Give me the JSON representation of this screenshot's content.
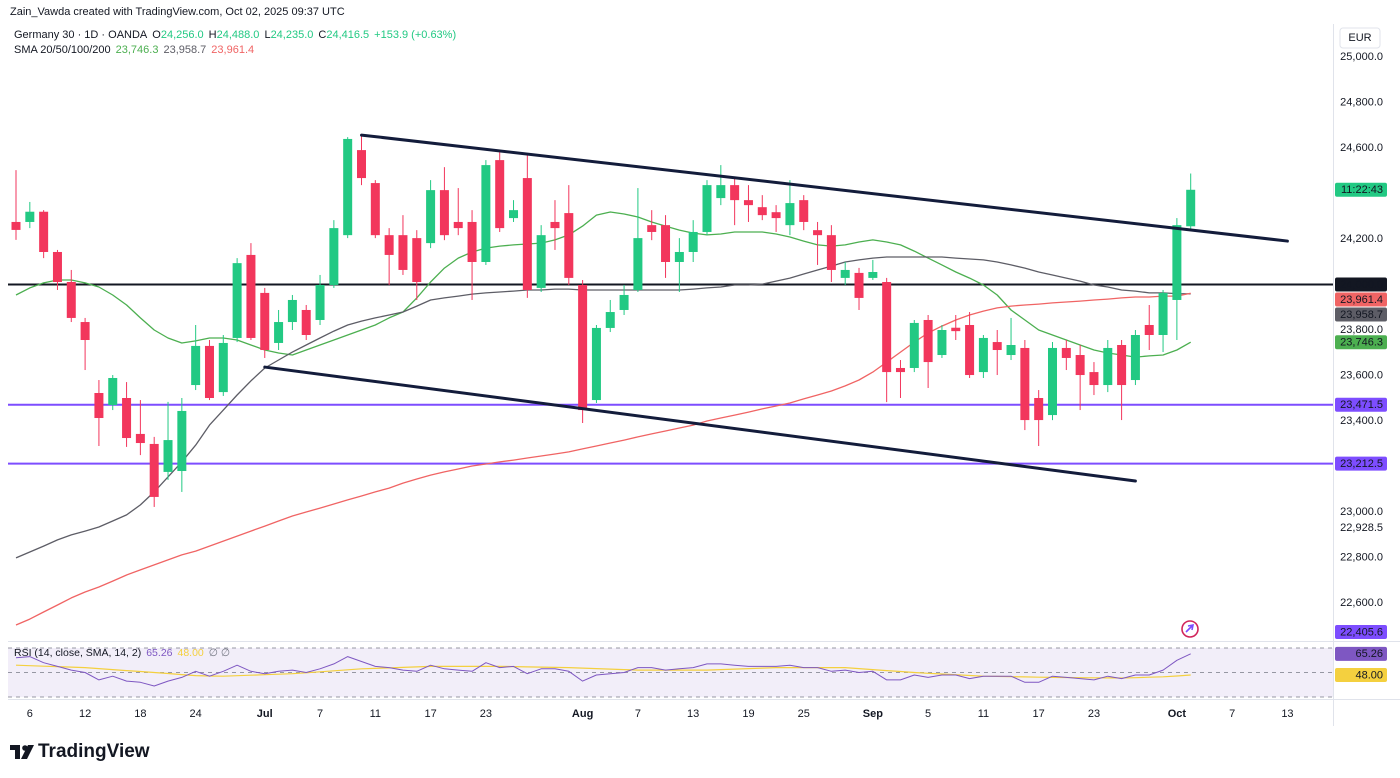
{
  "chart_data": {
    "type": "candlestick",
    "author_line": "Zain_Vawda created with TradingView.com, Oct 02, 2025 09:37 UTC",
    "symbol": "Germany 30 · 1D · OANDA",
    "ohlc_legend": [
      {
        "key": "O",
        "value": "24,256.0"
      },
      {
        "key": "H",
        "value": "24,488.0"
      },
      {
        "key": "L",
        "value": "24,235.0"
      },
      {
        "key": "C",
        "value": "24,416.5"
      }
    ],
    "change": "+153.9 (+0.63%)",
    "sma_title": "SMA 20/50/100/200",
    "currency": "EUR",
    "countdown": "11:22:43",
    "up_color": "#22c983",
    "down_color": "#f2365c",
    "grid": false,
    "categories": [
      null,
      "6",
      null,
      null,
      null,
      "12",
      null,
      null,
      null,
      "18",
      null,
      null,
      null,
      "24",
      null,
      null,
      null,
      null,
      "Jul",
      null,
      null,
      null,
      "7",
      null,
      null,
      null,
      "11",
      null,
      null,
      null,
      "17",
      null,
      null,
      null,
      "23",
      null,
      null,
      null,
      null,
      null,
      null,
      "Aug",
      null,
      null,
      null,
      "7",
      null,
      null,
      null,
      "13",
      null,
      null,
      null,
      "19",
      null,
      null,
      null,
      "25",
      null,
      null,
      null,
      null,
      "Sep",
      null,
      null,
      null,
      "5",
      null,
      null,
      null,
      "11",
      null,
      null,
      null,
      "17",
      null,
      null,
      null,
      "23",
      null,
      null,
      null,
      null,
      null,
      "Oct",
      null,
      null,
      null,
      "7",
      null,
      null,
      null,
      "13",
      null,
      null,
      null
    ],
    "open": [
      24275,
      24275,
      24320,
      24143,
      24011,
      23835,
      23523,
      23470,
      23501,
      23343,
      23299,
      23176,
      23180,
      23558,
      23730,
      23527,
      23765,
      24130,
      23963,
      23743,
      23835,
      23888,
      23844,
      23998,
      24217,
      24591,
      24446,
      24217,
      24217,
      24204,
      24182,
      24415,
      24275,
      24275,
      24099,
      24547,
      24292,
      24468,
      23985,
      24275,
      24314,
      23998,
      23492,
      23809,
      23888,
      23976,
      24261,
      24261,
      24099,
      24143,
      24231,
      24380,
      24437,
      24371,
      24340,
      24318,
      24261,
      24371,
      24239,
      24217,
      24029,
      24051,
      24029,
      24011,
      23633,
      23633,
      23844,
      23690,
      23810,
      23822,
      23615,
      23747,
      23690,
      23721,
      23501,
      23426,
      23721,
      23690,
      23615,
      23558,
      23734,
      23580,
      23822,
      23778,
      23932,
      24256,
      null,
      null,
      null,
      null,
      null,
      null,
      null,
      null,
      null,
      null
    ],
    "high": [
      24503,
      24363,
      24327,
      24152,
      24064,
      23853,
      23580,
      23602,
      23571,
      23492,
      23330,
      23484,
      23501,
      23822,
      23756,
      23778,
      24116,
      24182,
      23985,
      23888,
      23954,
      23910,
      24042,
      24283,
      24648,
      24657,
      24459,
      24248,
      24305,
      24239,
      24459,
      24516,
      24424,
      24327,
      24547,
      24582,
      24371,
      24569,
      24261,
      24371,
      24437,
      24020,
      23822,
      23932,
      23998,
      24424,
      24327,
      24305,
      24204,
      24283,
      24459,
      24525,
      24468,
      24437,
      24393,
      24349,
      24459,
      24393,
      24275,
      24261,
      24099,
      24073,
      24108,
      24029,
      23668,
      23844,
      23866,
      23822,
      23866,
      23879,
      23778,
      23800,
      23853,
      23756,
      23536,
      23747,
      23756,
      23734,
      23659,
      23756,
      23756,
      23800,
      23910,
      23976,
      24292,
      24488,
      null,
      null,
      null,
      null,
      null,
      null,
      null,
      null,
      null,
      null
    ],
    "low": [
      24196,
      24248,
      24116,
      23976,
      23835,
      23624,
      23290,
      23448,
      23286,
      23250,
      23022,
      23141,
      23088,
      23536,
      23492,
      23510,
      23747,
      23756,
      23677,
      23712,
      23800,
      23756,
      23822,
      23985,
      24204,
      24437,
      24204,
      23998,
      24042,
      23932,
      24160,
      24195,
      24217,
      23932,
      24086,
      24231,
      24275,
      23941,
      23967,
      24152,
      23998,
      23391,
      23479,
      23791,
      23866,
      23967,
      24195,
      24029,
      23967,
      24099,
      24217,
      24349,
      24261,
      24275,
      24283,
      24231,
      24217,
      24239,
      24086,
      24011,
      23998,
      23888,
      24020,
      23483,
      23501,
      23615,
      23545,
      23677,
      23756,
      23589,
      23589,
      23602,
      23668,
      23360,
      23290,
      23404,
      23624,
      23448,
      23514,
      23527,
      23404,
      23558,
      23712,
      23703,
      23756,
      24235,
      null,
      null,
      null,
      null,
      null,
      null,
      null,
      null,
      null,
      null
    ],
    "close": [
      24240,
      24320,
      24143,
      24011,
      23853,
      23756,
      23413,
      23589,
      23325,
      23303,
      23066,
      23316,
      23444,
      23730,
      23501,
      23743,
      24094,
      23765,
      23712,
      23835,
      23932,
      23778,
      23998,
      24248,
      24640,
      24468,
      24217,
      24130,
      24064,
      24011,
      24415,
      24217,
      24248,
      24099,
      24525,
      24248,
      24327,
      23976,
      24217,
      24248,
      24029,
      23448,
      23809,
      23879,
      23954,
      24204,
      24231,
      24099,
      24143,
      24231,
      24437,
      24437,
      24371,
      24349,
      24305,
      24292,
      24358,
      24275,
      24217,
      24064,
      24064,
      23941,
      24055,
      23615,
      23615,
      23831,
      23659,
      23800,
      23795,
      23602,
      23765,
      23712,
      23734,
      23404,
      23404,
      23721,
      23677,
      23602,
      23558,
      23721,
      23558,
      23778,
      23778,
      23963,
      24261,
      24416.5,
      null,
      null,
      null,
      null,
      null,
      null,
      null,
      null,
      null,
      null
    ],
    "series": [
      {
        "name": "SMA 20",
        "color": "#4caf50",
        "last_label": "23,746.3",
        "values": [
          23954,
          23985,
          24007,
          24020,
          24020,
          24007,
          23989,
          23954,
          23910,
          23853,
          23800,
          23765,
          23743,
          23752,
          23765,
          23765,
          23756,
          23734,
          23712,
          23699,
          23690,
          23712,
          23734,
          23756,
          23778,
          23800,
          23822,
          23853,
          23879,
          23941,
          24011,
          24072,
          24116,
          24143,
          24160,
          24169,
          24174,
          24178,
          24182,
          24196,
          24218,
          24257,
          24305,
          24319,
          24310,
          24297,
          24275,
          24257,
          24239,
          24226,
          24218,
          24222,
          24231,
          24231,
          24231,
          24222,
          24209,
          24191,
          24174,
          24169,
          24174,
          24187,
          24196,
          24187,
          24174,
          24147,
          24116,
          24086,
          24055,
          24028,
          23998,
          23954,
          23888,
          23844,
          23800,
          23778,
          23756,
          23734,
          23712,
          23699,
          23690,
          23681,
          23686,
          23690,
          23712,
          23746.3,
          null,
          null,
          null,
          null,
          null,
          null,
          null,
          null,
          null,
          null
        ]
      },
      {
        "name": "SMA 50",
        "color": "#5d5d66",
        "last_label": "23,958.7",
        "values": [
          22798,
          22824,
          22850,
          22877,
          22899,
          22916,
          22934,
          22960,
          22987,
          23031,
          23088,
          23154,
          23220,
          23294,
          23382,
          23448,
          23514,
          23576,
          23633,
          23668,
          23703,
          23734,
          23765,
          23795,
          23822,
          23839,
          23853,
          23866,
          23879,
          23905,
          23932,
          23941,
          23949,
          23958,
          23963,
          23967,
          23971,
          23976,
          23976,
          23980,
          23980,
          23976,
          23976,
          23976,
          23976,
          23976,
          23976,
          23976,
          23976,
          23980,
          23985,
          23989,
          23998,
          23998,
          24002,
          24015,
          24028,
          24046,
          24064,
          24081,
          24099,
          24108,
          24116,
          24121,
          24121,
          24121,
          24121,
          24121,
          24116,
          24112,
          24108,
          24099,
          24086,
          24072,
          24055,
          24042,
          24028,
          24015,
          23998,
          23989,
          23976,
          23971,
          23963,
          23963,
          23960,
          23958.7,
          null,
          null,
          null,
          null,
          null,
          null,
          null,
          null,
          null,
          null
        ]
      },
      {
        "name": "SMA 100",
        "color": "#f06464",
        "last_label": "23,961.4",
        "values": [
          22503,
          22529,
          22560,
          22591,
          22622,
          22648,
          22670,
          22696,
          22723,
          22745,
          22767,
          22789,
          22811,
          22828,
          22850,
          22872,
          22894,
          22916,
          22938,
          22960,
          22982,
          23000,
          23017,
          23035,
          23053,
          23070,
          23088,
          23105,
          23127,
          23145,
          23162,
          23176,
          23189,
          23202,
          23211,
          23220,
          23228,
          23237,
          23246,
          23255,
          23264,
          23277,
          23290,
          23303,
          23316,
          23330,
          23343,
          23356,
          23369,
          23382,
          23400,
          23413,
          23426,
          23439,
          23453,
          23466,
          23479,
          23497,
          23514,
          23532,
          23554,
          23580,
          23615,
          23659,
          23703,
          23747,
          23787,
          23817,
          23844,
          23866,
          23883,
          23897,
          23905,
          23910,
          23914,
          23919,
          23923,
          23927,
          23932,
          23936,
          23941,
          23945,
          23945,
          23949,
          23949,
          23961.4,
          null,
          null,
          null,
          null,
          null,
          null,
          null,
          null,
          null,
          null
        ]
      }
    ],
    "levels": [
      {
        "value": 24000,
        "label": "24,000.0",
        "color": "#131722"
      },
      {
        "value": 23471.5,
        "label": "23,471.5",
        "color": "#7d4dff"
      },
      {
        "value": 23212.5,
        "label": "23,212.5",
        "color": "#7d4dff"
      },
      {
        "value": 22405.6,
        "label": "22,405.6",
        "color": "#7d4dff"
      }
    ],
    "axis_marks": [
      {
        "value": 22928.5,
        "label": "22,928.5"
      }
    ],
    "trendlines": [
      {
        "start": [
          25,
          24657
        ],
        "end": [
          92,
          24191
        ],
        "color": "#131c3b"
      },
      {
        "start": [
          18,
          23637
        ],
        "end": [
          81,
          23136
        ],
        "color": "#131c3b"
      }
    ],
    "ylim": [
      22437,
      25119
    ],
    "yticks": [
      {
        "value": 25000,
        "label": "25,000.0"
      },
      {
        "value": 24800,
        "label": "24,800.0"
      },
      {
        "value": 24600,
        "label": "24,600.0"
      },
      {
        "value": 24200,
        "label": "24,200.0"
      },
      {
        "value": 23800,
        "label": "23,800.0"
      },
      {
        "value": 23600,
        "label": "23,600.0"
      },
      {
        "value": 23400,
        "label": "23,400.0"
      },
      {
        "value": 23000,
        "label": "23,000.0"
      },
      {
        "value": 22800,
        "label": "22,800.0"
      },
      {
        "value": 22600,
        "label": "22,600.0"
      }
    ],
    "rsi": {
      "title": "RSI (14, close, SMA, 14, 2)",
      "value_label": "65.26",
      "ma_label": "48.00",
      "extra": "∅ ∅",
      "color": "#7e57c2",
      "ma_color": "#f4d03f",
      "band_color": "#7e57c2",
      "bands": [
        70,
        50,
        30
      ],
      "ylim": [
        29.2,
        74.1
      ],
      "values": [
        62,
        63,
        58,
        55,
        52,
        50,
        44,
        47,
        43,
        42,
        39,
        43,
        46,
        51,
        47,
        51,
        56,
        51,
        49,
        51,
        52,
        50,
        53,
        57,
        63,
        59,
        55,
        54,
        52,
        51,
        56,
        53,
        52,
        51,
        58,
        54,
        55,
        49,
        53,
        53,
        51,
        43,
        48,
        49,
        50,
        54,
        54,
        52,
        53,
        54,
        57,
        57,
        56,
        55,
        55,
        55,
        56,
        54,
        54,
        51,
        52,
        50,
        51,
        44,
        44,
        48,
        46,
        48,
        48,
        45,
        47,
        47,
        47,
        42,
        42,
        47,
        46,
        45,
        44,
        47,
        45,
        48,
        48,
        52,
        60,
        65.26,
        null,
        null,
        null,
        null,
        null,
        null,
        null,
        null,
        null,
        null
      ],
      "ma": [
        56,
        55.6,
        55.2,
        54.8,
        54.4,
        54,
        53.2,
        52.4,
        51.6,
        50.8,
        50,
        49.2,
        48.3,
        47.5,
        47.2,
        47,
        47.4,
        47.8,
        48.2,
        48.6,
        49,
        49.8,
        50.6,
        51.4,
        52.2,
        53,
        53.4,
        53.8,
        54.2,
        54.6,
        55,
        55,
        55,
        55,
        55,
        55,
        54.8,
        54.6,
        54.4,
        54.2,
        54,
        53.6,
        53.2,
        52.8,
        52.4,
        52,
        52,
        52,
        52,
        52,
        52,
        52.4,
        52.8,
        53.2,
        53.6,
        54,
        54,
        54,
        54,
        54,
        54,
        53.2,
        52.4,
        51.6,
        50.8,
        50,
        49.4,
        48.8,
        48.2,
        47.6,
        47,
        46.8,
        46.6,
        46.4,
        46.2,
        46,
        45.9,
        45.8,
        45.7,
        45.6,
        45.5,
        45.8,
        46.2,
        46.5,
        47.2,
        48,
        null,
        null,
        null,
        null,
        null,
        null,
        null,
        null,
        null,
        null
      ]
    },
    "brand": "TradingView"
  }
}
